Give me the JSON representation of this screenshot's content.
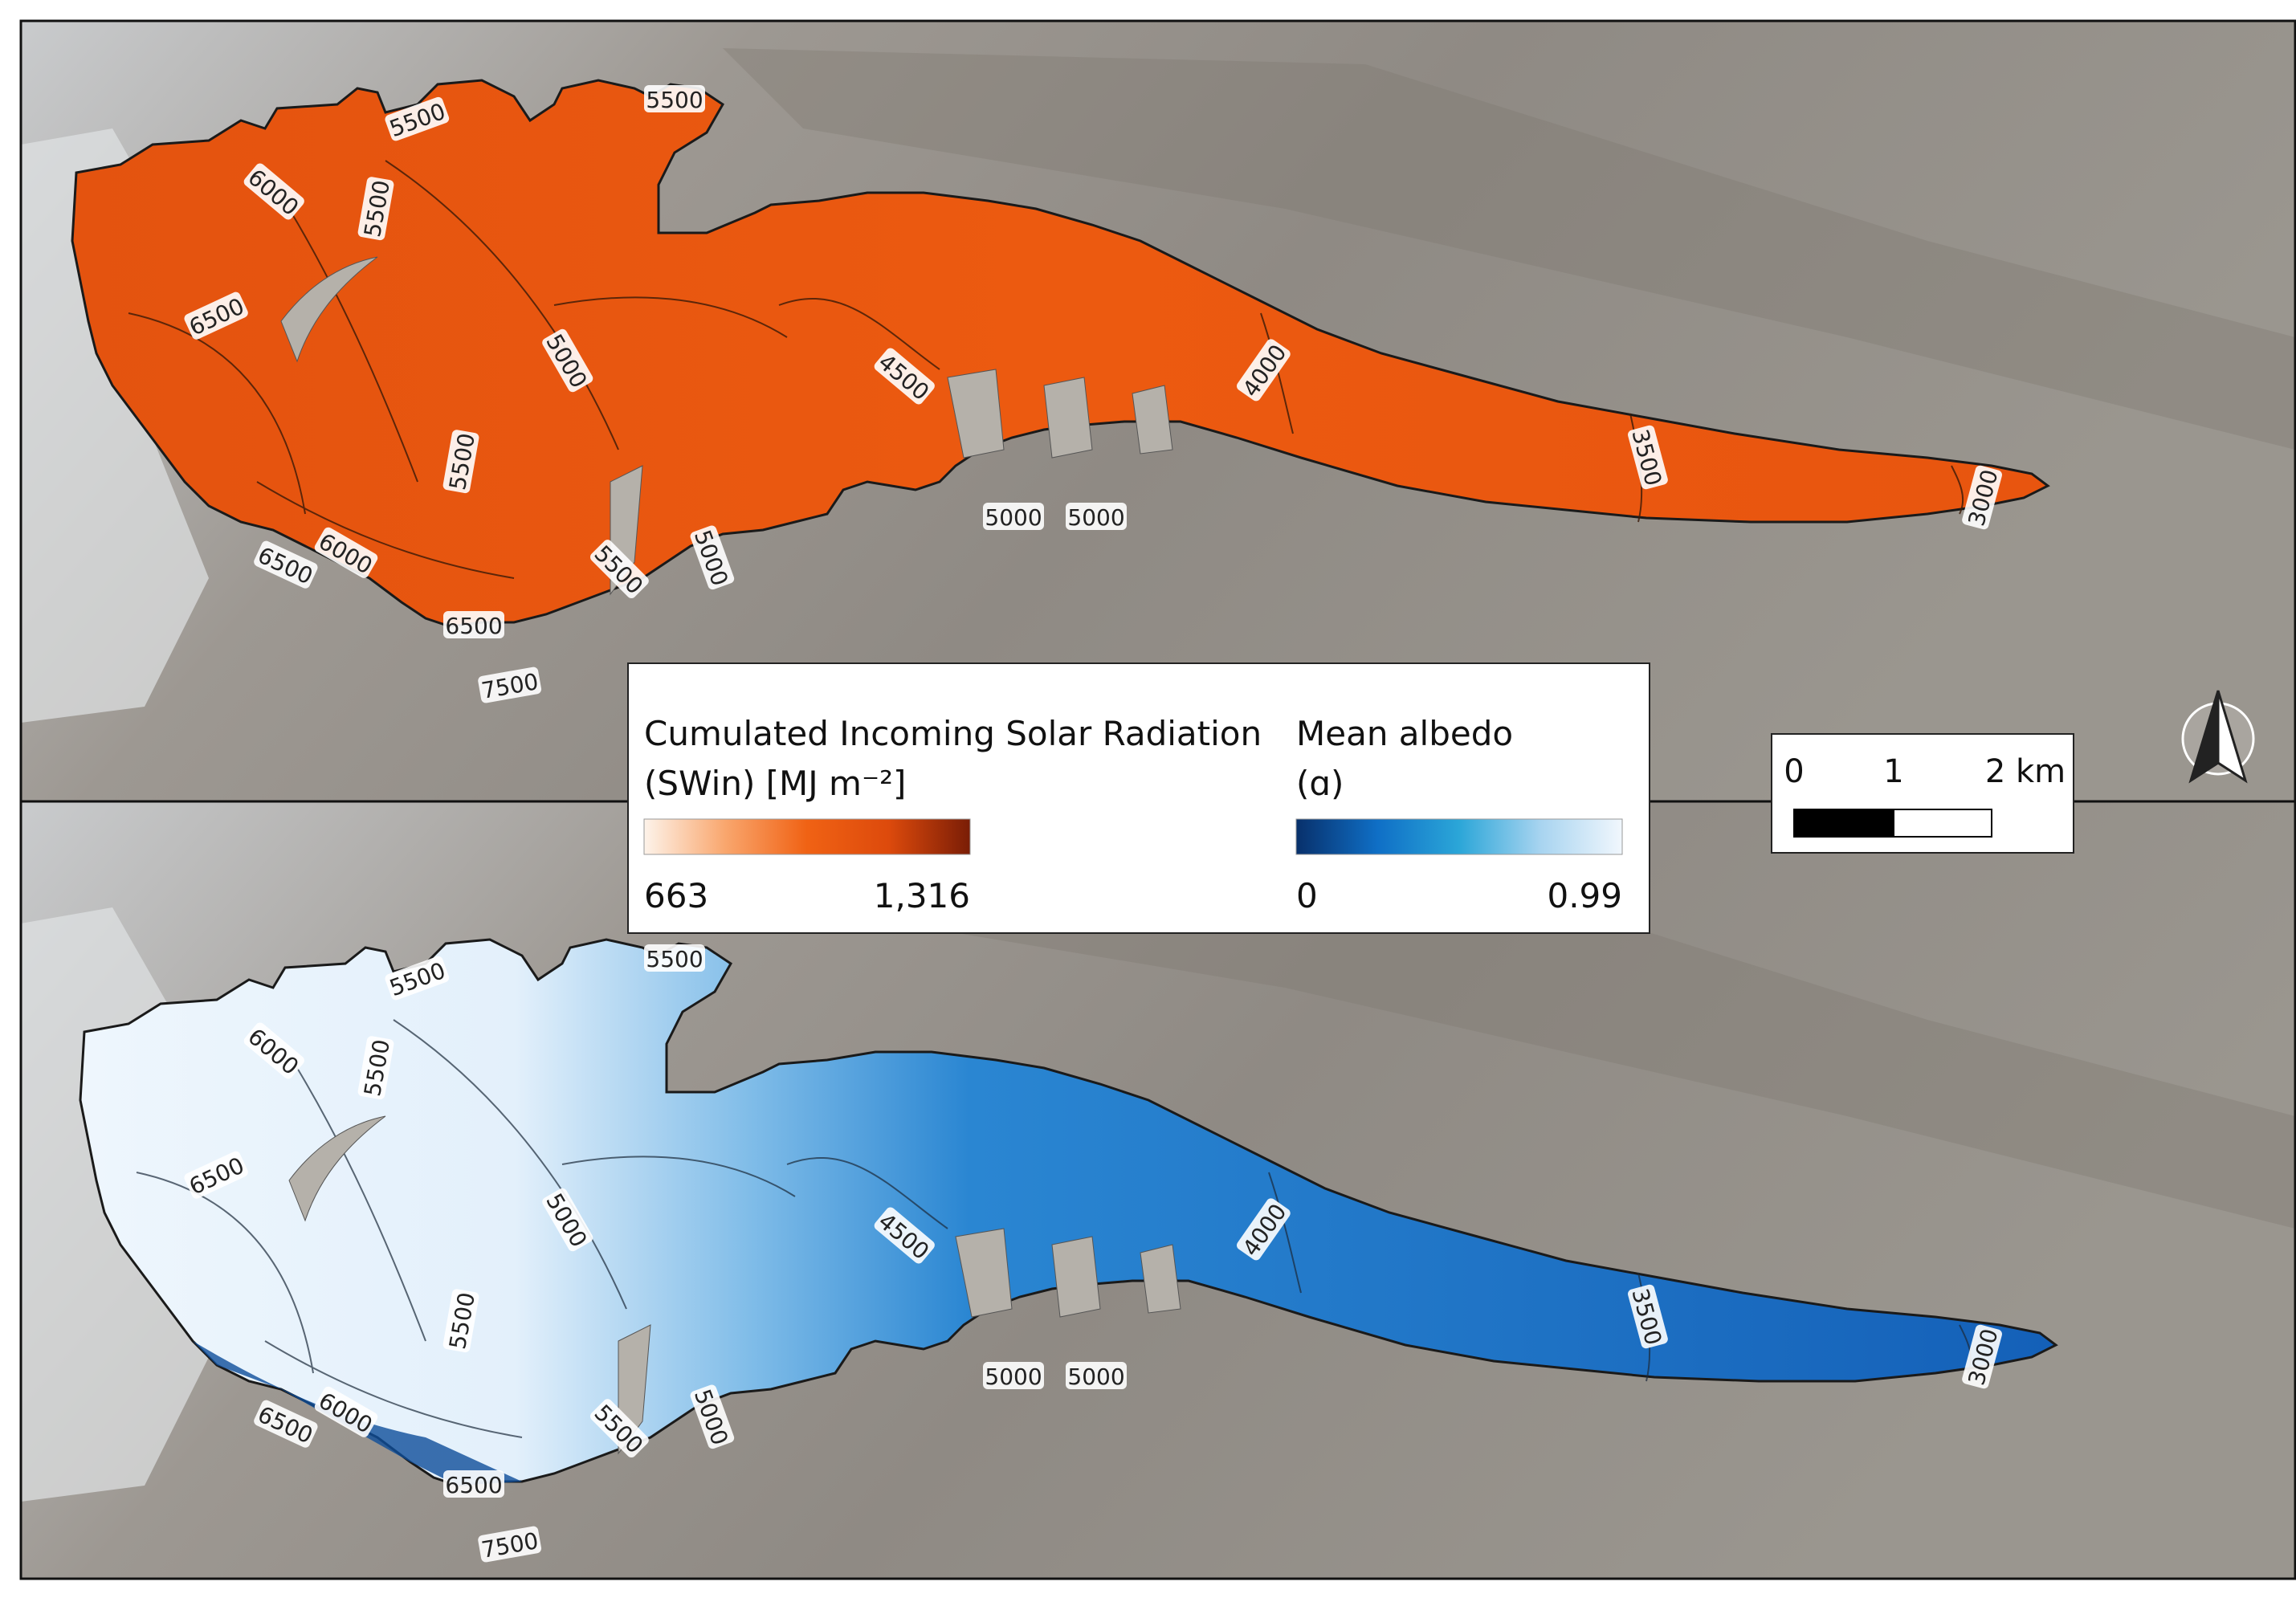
{
  "legend": {
    "swin": {
      "title_line1": "Cumulated Incoming Solar Radiation",
      "title_line2": "(SWin) [MJ m⁻²]",
      "min": "663",
      "max": "1,316",
      "colors": [
        "#fdf3ea",
        "#f9a66d",
        "#f06214",
        "#dd4a0c",
        "#7a1d06"
      ]
    },
    "albedo": {
      "title_line1": "Mean albedo",
      "title_line2": "(ɑ)",
      "min": "0",
      "max": "0.99",
      "colors": [
        "#08306b",
        "#0f6fc6",
        "#2ba6d8",
        "#a8d4f0",
        "#f1f7fd"
      ]
    }
  },
  "scalebar": {
    "label_0": "0",
    "label_1": "1",
    "label_2": "2 km"
  },
  "north_arrow": {
    "icon": "north-arrow-icon"
  },
  "panels": {
    "top": {
      "variable": "swin",
      "fill_colors": [
        "#e8550f",
        "#d84808"
      ],
      "contour_labels": [
        "5500",
        "5500",
        "6000",
        "5500",
        "6500",
        "5000",
        "4500",
        "4000",
        "5500",
        "3500",
        "3000",
        "6000",
        "6500",
        "5000",
        "5000",
        "5500",
        "5000",
        "6500",
        "7500"
      ]
    },
    "bottom": {
      "variable": "albedo",
      "fill_colors": [
        "#eaf4fc",
        "#1a78cc"
      ],
      "contour_labels": [
        "5500",
        "5500",
        "6000",
        "5500",
        "6500",
        "5000",
        "4500",
        "4000",
        "5500",
        "3500",
        "3000",
        "6000",
        "6500",
        "5000",
        "5000",
        "5500",
        "5000",
        "6500",
        "7500"
      ]
    }
  }
}
